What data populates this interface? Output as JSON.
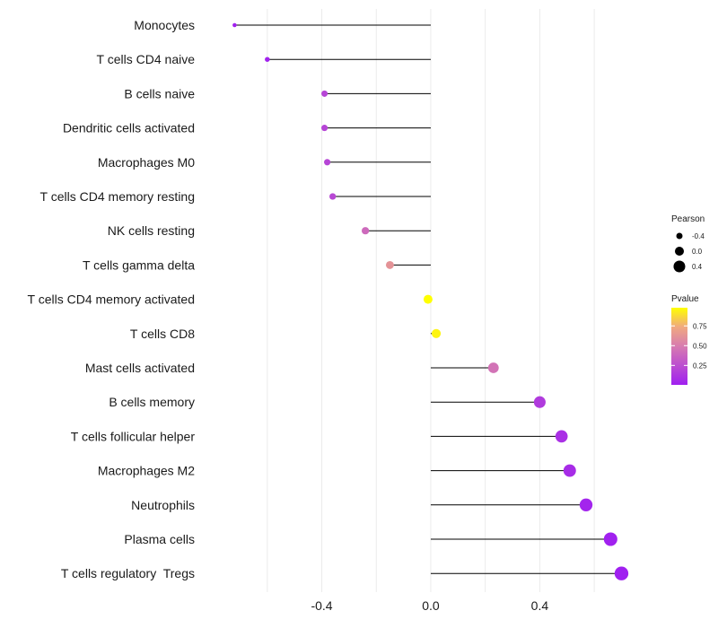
{
  "chart_data": {
    "type": "lollipop",
    "categories": [
      "Monocytes",
      "T cells CD4 naive",
      "B cells naive",
      "Dendritic cells activated",
      "Macrophages M0",
      "T cells CD4 memory resting",
      "NK cells resting",
      "T cells gamma delta",
      "T cells CD4 memory activated",
      "T cells CD8",
      "Mast cells activated",
      "B cells memory",
      "T cells follicular helper",
      "Macrophages M2",
      "Neutrophils",
      "Plasma cells",
      "T cells regulatory  Tregs"
    ],
    "pearson": [
      -0.72,
      -0.6,
      -0.39,
      -0.39,
      -0.38,
      -0.36,
      -0.24,
      -0.15,
      -0.01,
      0.02,
      0.23,
      0.4,
      0.48,
      0.51,
      0.57,
      0.66,
      0.7
    ],
    "pvalue": [
      0.01,
      0.02,
      0.2,
      0.2,
      0.2,
      0.22,
      0.4,
      0.62,
      0.98,
      0.95,
      0.45,
      0.15,
      0.09,
      0.07,
      0.03,
      0.01,
      0.004
    ],
    "xticks": [
      -0.4,
      0.0,
      0.4
    ],
    "xtick_labels": [
      "-0.4",
      "0.0",
      "0.4"
    ],
    "xlim": [
      -0.83,
      0.85
    ],
    "size_legend": {
      "title": "Pearson",
      "values": [
        -0.4,
        0.0,
        0.4
      ],
      "labels": [
        "-0.4",
        "0.0",
        "0.4"
      ]
    },
    "color_legend": {
      "title": "Pvalue",
      "ticks": [
        0.75,
        0.5,
        0.25
      ],
      "labels": [
        "0.75",
        "0.50",
        "0.25"
      ],
      "range": [
        0.004,
        0.98
      ],
      "low_color": "#A020F0",
      "high_color": "#FFFF00"
    }
  }
}
